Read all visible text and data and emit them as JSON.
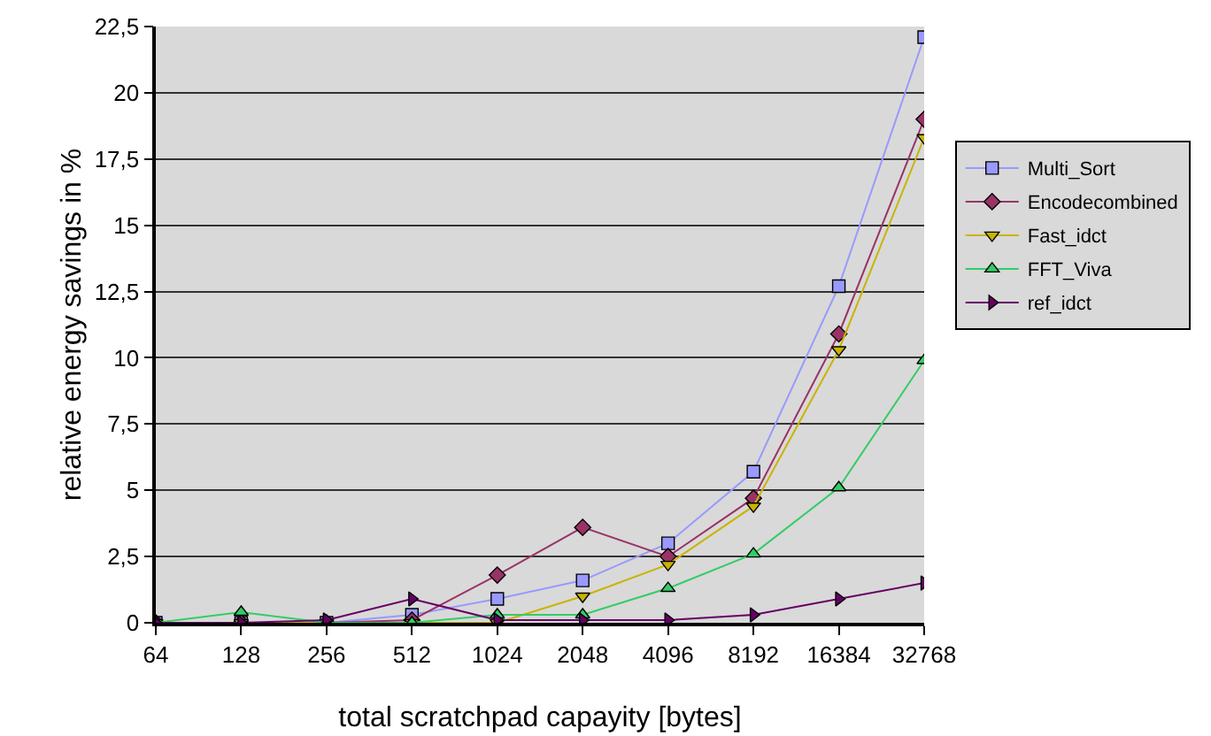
{
  "chart_data": {
    "type": "line",
    "xlabel": "total scratchpad capayity [bytes]",
    "ylabel": "relative energy savings in %",
    "categories": [
      "64",
      "128",
      "256",
      "512",
      "1024",
      "2048",
      "4096",
      "8192",
      "16384",
      "32768"
    ],
    "series": [
      {
        "name": "Multi_Sort",
        "color": "#9999ff",
        "marker": "square",
        "values": [
          0,
          0,
          0,
          0.3,
          0.9,
          1.6,
          3.0,
          5.7,
          12.7,
          22.1
        ]
      },
      {
        "name": "Encodecombined",
        "color": "#993366",
        "marker": "diamond",
        "values": [
          0,
          0,
          0,
          0.1,
          1.8,
          3.6,
          2.5,
          4.7,
          10.9,
          19.0
        ]
      },
      {
        "name": "Fast_idct",
        "color": "#c8b400",
        "marker": "triangle-down",
        "values": [
          0,
          0,
          0,
          0,
          0,
          1.0,
          2.2,
          4.4,
          10.3,
          18.3
        ]
      },
      {
        "name": "FFT_Viva",
        "color": "#33cc66",
        "marker": "triangle",
        "values": [
          0,
          0.4,
          0,
          0,
          0.3,
          0.3,
          1.3,
          2.6,
          5.1,
          9.9
        ]
      },
      {
        "name": "ref_idct",
        "color": "#660066",
        "marker": "triangle-right",
        "values": [
          0,
          0,
          0.1,
          0.9,
          0.1,
          0.1,
          0.1,
          0.3,
          0.9,
          1.5
        ]
      }
    ],
    "ylim": [
      0,
      22.5
    ],
    "yticks": [
      0,
      {
        "value": 2.5,
        "label": "2,5"
      },
      5,
      {
        "value": 7.5,
        "label": "7,5"
      },
      10,
      {
        "value": 12.5,
        "label": "12,5"
      },
      15,
      {
        "value": 17.5,
        "label": "17,5"
      },
      20,
      {
        "value": 22.5,
        "label": "22,5"
      }
    ],
    "grid": "y",
    "legend": "right",
    "line_style": "solid"
  }
}
